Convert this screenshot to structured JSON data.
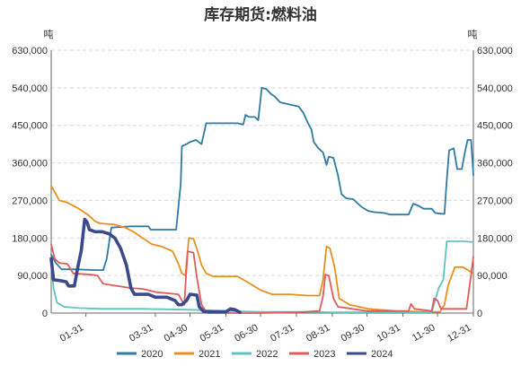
{
  "chart_data": {
    "type": "line",
    "title": "库存期货:燃料油",
    "ylabel_left": "吨",
    "ylabel_right": "吨",
    "ylim": [
      0,
      630000
    ],
    "yticks": [
      0,
      90000,
      180000,
      270000,
      360000,
      450000,
      540000,
      630000
    ],
    "ytick_labels": [
      "0",
      "90,000",
      "180,000",
      "270,000",
      "360,000",
      "450,000",
      "540,000",
      "630,000"
    ],
    "x_domain": [
      "01-01",
      "12-31"
    ],
    "xtick_labels": [
      "01-31",
      "03-31",
      "04-30",
      "05-31",
      "06-30",
      "07-31",
      "08-31",
      "09-30",
      "10-31",
      "11-30",
      "12-31"
    ],
    "xtick_dates": [
      "01-31",
      "03-31",
      "04-30",
      "05-31",
      "06-30",
      "07-31",
      "08-31",
      "09-30",
      "10-31",
      "11-30",
      "12-31"
    ],
    "grid": "horizontal-dashed",
    "legend_position": "bottom",
    "series": [
      {
        "name": "2020",
        "color": "#2e7aa3",
        "points": [
          [
            "01-01",
            140000
          ],
          [
            "01-05",
            120000
          ],
          [
            "01-10",
            105000
          ],
          [
            "01-20",
            105000
          ],
          [
            "02-10",
            103000
          ],
          [
            "02-15",
            103000
          ],
          [
            "02-18",
            130000
          ],
          [
            "02-22",
            205000
          ],
          [
            "03-10",
            208000
          ],
          [
            "03-25",
            208000
          ],
          [
            "03-27",
            200000
          ],
          [
            "04-05",
            200000
          ],
          [
            "04-18",
            200000
          ],
          [
            "04-22",
            310000
          ],
          [
            "04-23",
            400000
          ],
          [
            "04-27",
            405000
          ],
          [
            "04-30",
            410000
          ],
          [
            "05-05",
            415000
          ],
          [
            "05-10",
            405000
          ],
          [
            "05-14",
            455000
          ],
          [
            "05-25",
            455000
          ],
          [
            "06-10",
            455000
          ],
          [
            "06-15",
            452000
          ],
          [
            "06-17",
            475000
          ],
          [
            "06-20",
            470000
          ],
          [
            "06-25",
            470000
          ],
          [
            "06-28",
            462000
          ],
          [
            "07-01",
            540000
          ],
          [
            "07-05",
            537000
          ],
          [
            "07-09",
            525000
          ],
          [
            "07-12",
            520000
          ],
          [
            "07-17",
            505000
          ],
          [
            "07-25",
            500000
          ],
          [
            "08-02",
            495000
          ],
          [
            "08-06",
            480000
          ],
          [
            "08-10",
            455000
          ],
          [
            "08-13",
            440000
          ],
          [
            "08-15",
            410000
          ],
          [
            "08-19",
            395000
          ],
          [
            "08-23",
            385000
          ],
          [
            "08-26",
            355000
          ],
          [
            "08-28",
            375000
          ],
          [
            "09-01",
            372000
          ],
          [
            "09-05",
            330000
          ],
          [
            "09-08",
            285000
          ],
          [
            "09-12",
            275000
          ],
          [
            "09-18",
            273000
          ],
          [
            "09-25",
            255000
          ],
          [
            "10-01",
            245000
          ],
          [
            "10-06",
            242000
          ],
          [
            "10-15",
            240000
          ],
          [
            "10-20",
            236000
          ],
          [
            "11-05",
            236000
          ],
          [
            "11-09",
            262000
          ],
          [
            "11-13",
            258000
          ],
          [
            "11-18",
            250000
          ],
          [
            "11-25",
            250000
          ],
          [
            "11-28",
            240000
          ],
          [
            "12-03",
            238000
          ],
          [
            "12-06",
            238000
          ],
          [
            "12-08",
            320000
          ],
          [
            "12-10",
            390000
          ],
          [
            "12-14",
            395000
          ],
          [
            "12-17",
            345000
          ],
          [
            "12-21",
            345000
          ],
          [
            "12-24",
            390000
          ],
          [
            "12-26",
            415000
          ],
          [
            "12-29",
            415000
          ],
          [
            "12-31",
            330000
          ]
        ]
      },
      {
        "name": "2021",
        "color": "#e8901f",
        "points": [
          [
            "01-01",
            305000
          ],
          [
            "01-04",
            290000
          ],
          [
            "01-08",
            270000
          ],
          [
            "01-15",
            265000
          ],
          [
            "01-25",
            250000
          ],
          [
            "02-02",
            235000
          ],
          [
            "02-08",
            220000
          ],
          [
            "02-12",
            215000
          ],
          [
            "02-25",
            212000
          ],
          [
            "03-05",
            205000
          ],
          [
            "03-12",
            195000
          ],
          [
            "03-20",
            180000
          ],
          [
            "03-28",
            165000
          ],
          [
            "04-05",
            160000
          ],
          [
            "04-15",
            148000
          ],
          [
            "04-20",
            118000
          ],
          [
            "04-23",
            95000
          ],
          [
            "04-26",
            90000
          ],
          [
            "04-29",
            180000
          ],
          [
            "05-03",
            178000
          ],
          [
            "05-07",
            145000
          ],
          [
            "05-10",
            115000
          ],
          [
            "05-14",
            95000
          ],
          [
            "05-20",
            88000
          ],
          [
            "06-10",
            88000
          ],
          [
            "06-20",
            72000
          ],
          [
            "06-30",
            55000
          ],
          [
            "07-10",
            45000
          ],
          [
            "07-25",
            45000
          ],
          [
            "08-10",
            42000
          ],
          [
            "08-20",
            42000
          ],
          [
            "08-23",
            80000
          ],
          [
            "08-26",
            160000
          ],
          [
            "08-29",
            155000
          ],
          [
            "09-02",
            110000
          ],
          [
            "09-06",
            35000
          ],
          [
            "09-15",
            20000
          ],
          [
            "10-01",
            10000
          ],
          [
            "10-25",
            5000
          ],
          [
            "11-20",
            3000
          ],
          [
            "12-02",
            3000
          ],
          [
            "12-06",
            20000
          ],
          [
            "12-09",
            65000
          ],
          [
            "12-15",
            110000
          ],
          [
            "12-22",
            110000
          ],
          [
            "12-25",
            105000
          ],
          [
            "12-31",
            95000
          ]
        ]
      },
      {
        "name": "2022",
        "color": "#5ec4c0",
        "points": [
          [
            "01-01",
            120000
          ],
          [
            "01-03",
            60000
          ],
          [
            "01-06",
            25000
          ],
          [
            "01-12",
            15000
          ],
          [
            "01-25",
            12000
          ],
          [
            "02-15",
            10000
          ],
          [
            "03-20",
            10000
          ],
          [
            "04-30",
            8000
          ],
          [
            "05-31",
            5000
          ],
          [
            "06-30",
            3000
          ],
          [
            "07-31",
            3000
          ],
          [
            "08-31",
            2000
          ],
          [
            "09-30",
            2000
          ],
          [
            "10-31",
            2000
          ],
          [
            "11-25",
            2000
          ],
          [
            "12-01",
            60000
          ],
          [
            "12-05",
            80000
          ],
          [
            "12-08",
            172000
          ],
          [
            "12-22",
            172000
          ],
          [
            "12-31",
            170000
          ]
        ]
      },
      {
        "name": "2023",
        "color": "#e05b5b",
        "points": [
          [
            "01-01",
            165000
          ],
          [
            "01-04",
            130000
          ],
          [
            "01-08",
            120000
          ],
          [
            "01-15",
            118000
          ],
          [
            "01-20",
            95000
          ],
          [
            "02-05",
            92000
          ],
          [
            "02-10",
            90000
          ],
          [
            "02-15",
            70000
          ],
          [
            "03-10",
            60000
          ],
          [
            "03-20",
            58000
          ],
          [
            "04-01",
            50000
          ],
          [
            "04-20",
            45000
          ],
          [
            "04-25",
            20000
          ],
          [
            "04-28",
            148000
          ],
          [
            "05-03",
            145000
          ],
          [
            "05-06",
            85000
          ],
          [
            "05-10",
            20000
          ],
          [
            "05-15",
            0
          ],
          [
            "06-30",
            0
          ],
          [
            "07-31",
            2000
          ],
          [
            "08-20",
            5000
          ],
          [
            "08-23",
            40000
          ],
          [
            "08-25",
            92000
          ],
          [
            "08-28",
            90000
          ],
          [
            "09-01",
            35000
          ],
          [
            "09-05",
            15000
          ],
          [
            "09-30",
            5000
          ],
          [
            "10-31",
            5000
          ],
          [
            "11-05",
            5000
          ],
          [
            "11-07",
            22000
          ],
          [
            "11-10",
            10000
          ],
          [
            "11-25",
            5000
          ],
          [
            "11-27",
            35000
          ],
          [
            "11-30",
            30000
          ],
          [
            "12-03",
            10000
          ],
          [
            "12-25",
            10000
          ],
          [
            "12-28",
            70000
          ],
          [
            "12-31",
            135000
          ]
        ]
      },
      {
        "name": "2024",
        "color": "#3b4a8c",
        "points": [
          [
            "01-01",
            130000
          ],
          [
            "01-03",
            80000
          ],
          [
            "01-08",
            78000
          ],
          [
            "01-14",
            75000
          ],
          [
            "01-16",
            65000
          ],
          [
            "01-21",
            65000
          ],
          [
            "01-24",
            110000
          ],
          [
            "01-27",
            150000
          ],
          [
            "01-30",
            225000
          ],
          [
            "02-01",
            218000
          ],
          [
            "02-03",
            200000
          ],
          [
            "02-08",
            195000
          ],
          [
            "02-14",
            195000
          ],
          [
            "02-20",
            190000
          ],
          [
            "02-25",
            180000
          ],
          [
            "03-01",
            155000
          ],
          [
            "03-06",
            115000
          ],
          [
            "03-10",
            60000
          ],
          [
            "03-13",
            45000
          ],
          [
            "03-18",
            45000
          ],
          [
            "03-25",
            45000
          ],
          [
            "03-31",
            38000
          ],
          [
            "04-10",
            38000
          ],
          [
            "04-17",
            30000
          ],
          [
            "04-20",
            20000
          ],
          [
            "04-23",
            20000
          ],
          [
            "04-27",
            30000
          ],
          [
            "04-30",
            45000
          ],
          [
            "05-06",
            43000
          ],
          [
            "05-08",
            15000
          ],
          [
            "05-12",
            3000
          ],
          [
            "05-20",
            3000
          ],
          [
            "05-31",
            3000
          ],
          [
            "06-04",
            10000
          ],
          [
            "06-08",
            8000
          ],
          [
            "06-12",
            2000
          ]
        ]
      }
    ]
  }
}
